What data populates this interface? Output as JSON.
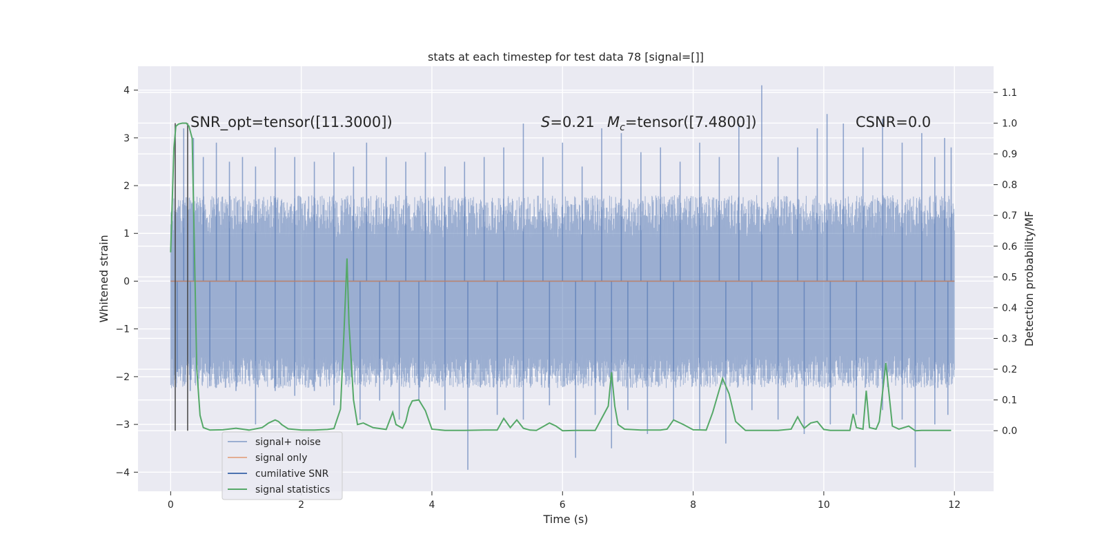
{
  "chart_data": {
    "type": "line",
    "title": "stats at each timestep for test data 78 [signal=[]]",
    "xlabel": "Time (s)",
    "ylabel": "Whitened strain",
    "ylabel_right": "Detection probability/MF",
    "xlim": [
      -0.5,
      12.6
    ],
    "ylim": [
      -4.4,
      4.5
    ],
    "ylim_right": [
      -0.197,
      1.185
    ],
    "x_ticks": [
      0,
      2,
      4,
      6,
      8,
      10,
      12
    ],
    "y_ticks": [
      -4,
      -3,
      -2,
      -1,
      0,
      1,
      2,
      3,
      4
    ],
    "y_ticks_right": [
      0.0,
      0.1,
      0.2,
      0.3,
      0.4,
      0.5,
      0.6,
      0.7,
      0.8,
      0.9,
      1.0,
      1.1
    ],
    "grid": true,
    "annotations": {
      "snr_opt": "SNR_opt=tensor([11.3000])",
      "s_value": "=0.21",
      "mc_value": "=tensor([7.4800])",
      "csnr": "CSNR=0.0"
    },
    "vlines_x": [
      0.07,
      0.26
    ],
    "legend": {
      "placement": "lower-left",
      "entries": [
        "signal+ noise",
        "signal only",
        "cumilative SNR",
        "signal statistics"
      ]
    },
    "series": [
      {
        "name": "signal+ noise",
        "color": "#4c72b0",
        "x": [
          0,
          12
        ],
        "band_typical": [
          -1.75,
          1.35
        ],
        "spikes_up": [
          [
            0.2,
            3.2
          ],
          [
            0.35,
            3.0
          ],
          [
            0.5,
            2.6
          ],
          [
            0.7,
            2.9
          ],
          [
            0.9,
            2.5
          ],
          [
            1.1,
            2.6
          ],
          [
            1.3,
            2.4
          ],
          [
            1.6,
            2.8
          ],
          [
            1.9,
            2.6
          ],
          [
            2.2,
            2.5
          ],
          [
            2.5,
            2.7
          ],
          [
            2.8,
            2.4
          ],
          [
            3.0,
            2.9
          ],
          [
            3.3,
            2.6
          ],
          [
            3.6,
            2.5
          ],
          [
            3.9,
            2.7
          ],
          [
            4.2,
            2.4
          ],
          [
            4.5,
            2.5
          ],
          [
            4.8,
            2.6
          ],
          [
            5.1,
            2.8
          ],
          [
            5.4,
            3.3
          ],
          [
            5.7,
            2.6
          ],
          [
            6.0,
            2.9
          ],
          [
            6.3,
            2.4
          ],
          [
            6.6,
            3.2
          ],
          [
            6.9,
            3.1
          ],
          [
            7.2,
            2.7
          ],
          [
            7.5,
            2.8
          ],
          [
            7.8,
            2.5
          ],
          [
            8.1,
            2.9
          ],
          [
            8.4,
            2.6
          ],
          [
            8.7,
            3.3
          ],
          [
            9.05,
            4.1
          ],
          [
            9.3,
            2.6
          ],
          [
            9.6,
            2.8
          ],
          [
            9.9,
            3.2
          ],
          [
            10.05,
            3.5
          ],
          [
            10.3,
            3.3
          ],
          [
            10.6,
            2.8
          ],
          [
            10.9,
            3.4
          ],
          [
            11.2,
            2.9
          ],
          [
            11.5,
            3.1
          ],
          [
            11.7,
            2.6
          ],
          [
            11.85,
            3.0
          ],
          [
            11.95,
            2.8
          ]
        ],
        "spikes_down": [
          [
            0.1,
            -1.9
          ],
          [
            0.3,
            -2.3
          ],
          [
            0.6,
            -2.2
          ],
          [
            1.0,
            -2.3
          ],
          [
            1.3,
            -3.0
          ],
          [
            1.6,
            -2.3
          ],
          [
            1.9,
            -2.4
          ],
          [
            2.2,
            -2.3
          ],
          [
            2.5,
            -2.6
          ],
          [
            2.9,
            -2.9
          ],
          [
            3.2,
            -2.5
          ],
          [
            3.5,
            -2.9
          ],
          [
            3.8,
            -2.5
          ],
          [
            4.2,
            -2.7
          ],
          [
            4.55,
            -3.95
          ],
          [
            5.0,
            -2.8
          ],
          [
            5.4,
            -2.9
          ],
          [
            5.8,
            -2.6
          ],
          [
            6.2,
            -3.7
          ],
          [
            6.5,
            -2.8
          ],
          [
            6.75,
            -3.5
          ],
          [
            7.0,
            -2.7
          ],
          [
            7.3,
            -3.2
          ],
          [
            7.7,
            -2.9
          ],
          [
            8.1,
            -3.1
          ],
          [
            8.5,
            -3.4
          ],
          [
            8.9,
            -2.7
          ],
          [
            9.3,
            -2.9
          ],
          [
            9.7,
            -3.2
          ],
          [
            10.1,
            -3.0
          ],
          [
            10.5,
            -2.8
          ],
          [
            10.9,
            -2.7
          ],
          [
            11.2,
            -2.9
          ],
          [
            11.4,
            -3.9
          ],
          [
            11.7,
            -3.0
          ],
          [
            11.9,
            -2.8
          ]
        ]
      },
      {
        "name": "signal only",
        "color": "#dd8452",
        "x": [
          0,
          12
        ],
        "y": [
          0,
          0
        ]
      },
      {
        "name": "cumilative SNR",
        "color": "#4c72b0",
        "x": [
          0,
          12
        ],
        "y": [
          0,
          0
        ]
      },
      {
        "name": "signal statistics",
        "color": "#55a868",
        "axis": "right",
        "x": [
          0.0,
          0.05,
          0.08,
          0.12,
          0.18,
          0.24,
          0.28,
          0.33,
          0.4,
          0.45,
          0.5,
          0.6,
          0.8,
          1.0,
          1.2,
          1.4,
          1.5,
          1.6,
          1.65,
          1.7,
          1.8,
          2.0,
          2.2,
          2.4,
          2.5,
          2.6,
          2.65,
          2.7,
          2.73,
          2.8,
          2.86,
          2.95,
          3.1,
          3.3,
          3.4,
          3.45,
          3.55,
          3.6,
          3.65,
          3.7,
          3.8,
          3.9,
          4.0,
          4.2,
          4.5,
          4.8,
          5.0,
          5.1,
          5.2,
          5.3,
          5.4,
          5.5,
          5.6,
          5.8,
          5.9,
          6.0,
          6.2,
          6.5,
          6.7,
          6.75,
          6.8,
          6.85,
          6.95,
          7.2,
          7.5,
          7.6,
          7.7,
          7.85,
          8.0,
          8.2,
          8.3,
          8.45,
          8.55,
          8.65,
          8.8,
          9.0,
          9.3,
          9.5,
          9.6,
          9.65,
          9.7,
          9.8,
          9.9,
          10.0,
          10.1,
          10.3,
          10.4,
          10.45,
          10.5,
          10.6,
          10.65,
          10.7,
          10.8,
          10.85,
          10.95,
          11.05,
          11.15,
          11.3,
          11.4,
          11.5,
          11.7,
          11.95
        ],
        "y": [
          0.58,
          0.92,
          0.99,
          0.997,
          1.0,
          1.0,
          0.99,
          0.95,
          0.2,
          0.05,
          0.01,
          0.002,
          0.003,
          0.008,
          0.002,
          0.01,
          0.025,
          0.035,
          0.03,
          0.02,
          0.006,
          0.002,
          0.002,
          0.004,
          0.007,
          0.07,
          0.3,
          0.56,
          0.35,
          0.1,
          0.02,
          0.025,
          0.01,
          0.004,
          0.06,
          0.02,
          0.008,
          0.03,
          0.075,
          0.097,
          0.1,
          0.065,
          0.005,
          0.001,
          0.001,
          0.002,
          0.002,
          0.04,
          0.01,
          0.035,
          0.008,
          0.002,
          0.001,
          0.025,
          0.015,
          0.0,
          0.001,
          0.001,
          0.08,
          0.19,
          0.08,
          0.02,
          0.005,
          0.002,
          0.002,
          0.005,
          0.035,
          0.02,
          0.003,
          0.002,
          0.06,
          0.17,
          0.12,
          0.03,
          0.001,
          0.001,
          0.001,
          0.005,
          0.045,
          0.025,
          0.008,
          0.025,
          0.03,
          0.004,
          0.001,
          0.001,
          0.001,
          0.055,
          0.01,
          0.005,
          0.13,
          0.01,
          0.005,
          0.03,
          0.22,
          0.015,
          0.005,
          0.015,
          0.0,
          0.001,
          0.001,
          0.001
        ]
      }
    ]
  }
}
